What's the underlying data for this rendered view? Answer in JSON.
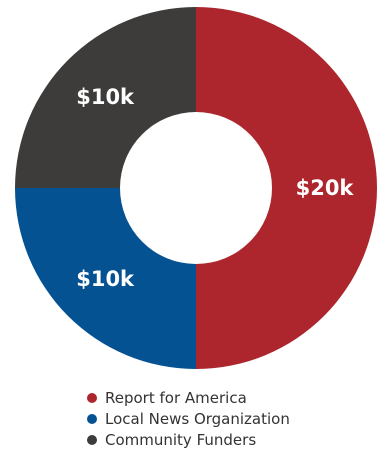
{
  "chart_data": {
    "type": "pie",
    "variant": "donut",
    "categories": [
      "Report for America",
      "Local News Organization",
      "Community Funders"
    ],
    "values": [
      20,
      10,
      10
    ],
    "value_labels": [
      "$20k",
      "$10k",
      "$10k"
    ],
    "colors": [
      "#ad262d",
      "#055293",
      "#3e3c3b"
    ],
    "legend": "bottom",
    "start_angle": "top, clockwise"
  },
  "legend": {
    "items": [
      {
        "label": "Report for America",
        "color": "#ad262d"
      },
      {
        "label": "Local News Organization",
        "color": "#055293"
      },
      {
        "label": "Community Funders",
        "color": "#3e3c3b"
      }
    ]
  }
}
